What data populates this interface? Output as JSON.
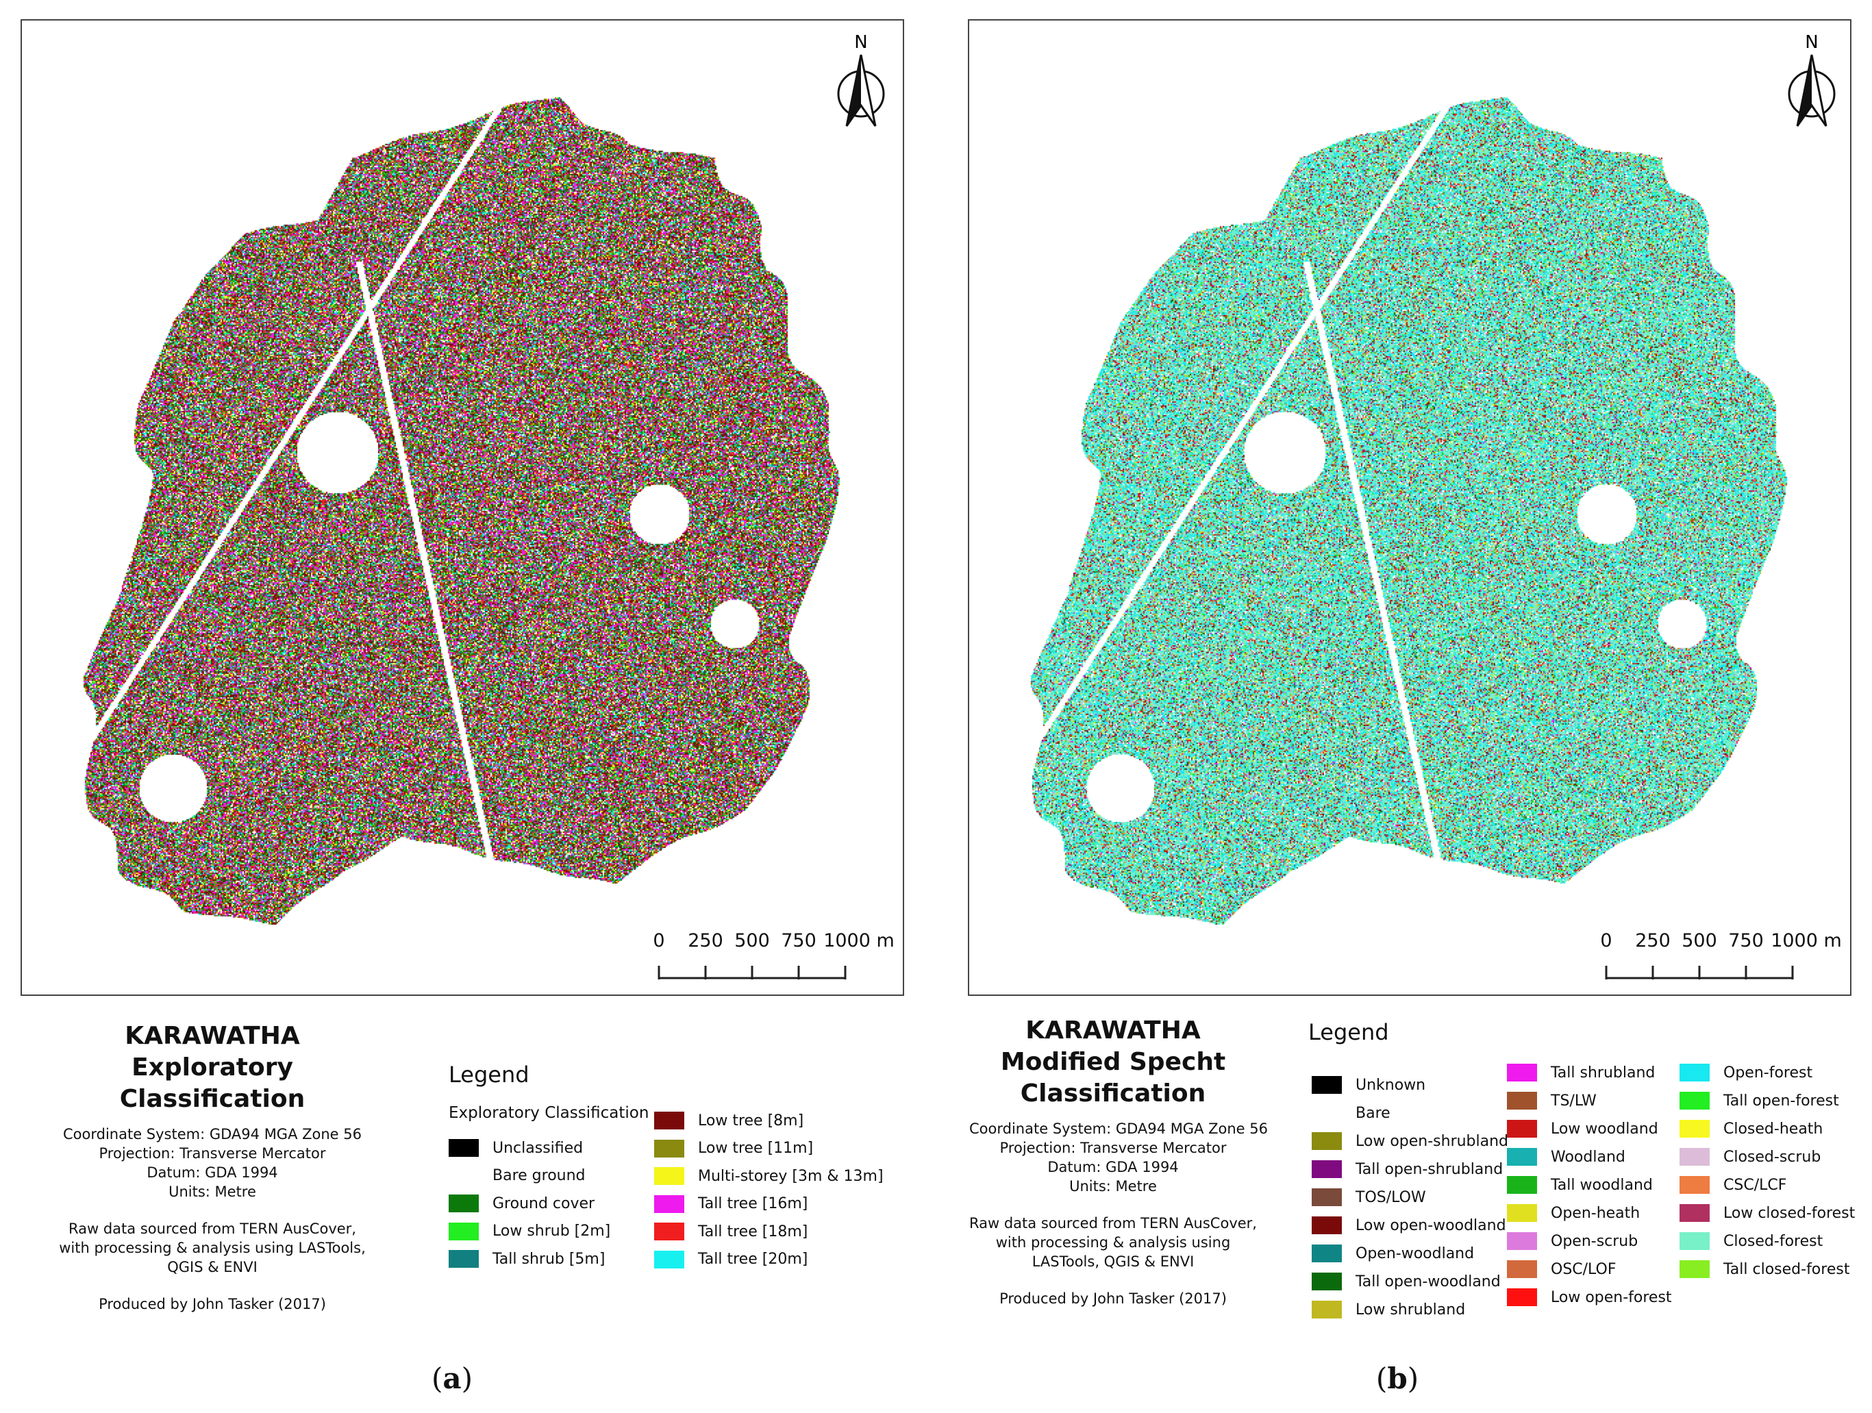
{
  "north_label": "N",
  "scalebar": {
    "ticks": [
      "0",
      "250",
      "500",
      "750",
      "1000 m"
    ]
  },
  "panel_a": {
    "caption_letter": "a",
    "title_line1": "KARAWATHA",
    "title_line2": "Exploratory Classification",
    "meta": {
      "coord": "Coordinate System: GDA94 MGA Zone 56",
      "projection": "Projection: Transverse Mercator",
      "datum": "Datum: GDA 1994",
      "units": "Units: Metre",
      "source1": "Raw data sourced from TERN AusCover,",
      "source2": "with processing & analysis using LASTools,",
      "source3": "QGIS & ENVI",
      "produced": "Produced by John Tasker (2017)"
    },
    "legend_title": "Legend",
    "legend_subtitle": "Exploratory Classification",
    "legend": [
      {
        "label": "Unclassified",
        "color": "#000000"
      },
      {
        "label": "Bare ground",
        "color": "#ffffff"
      },
      {
        "label": "Ground cover",
        "color": "#0b7a0b"
      },
      {
        "label": "Low shrub [2m]",
        "color": "#22ee22"
      },
      {
        "label": "Tall shrub [5m]",
        "color": "#128080"
      },
      {
        "label": "Low tree [8m]",
        "color": "#7a0a0a"
      },
      {
        "label": "Low tree [11m]",
        "color": "#8a8a10"
      },
      {
        "label": "Multi-storey [3m & 13m]",
        "color": "#f5f51a"
      },
      {
        "label": "Tall tree [16m]",
        "color": "#ee1aee"
      },
      {
        "label": "Tall tree [18m]",
        "color": "#f01e1e"
      },
      {
        "label": "Tall tree [20m]",
        "color": "#18f0f0"
      }
    ]
  },
  "panel_b": {
    "caption_letter": "b",
    "title_line1": "KARAWATHA",
    "title_line2": "Modified Specht",
    "title_line3": "Classification",
    "meta": {
      "coord": "Coordinate System: GDA94 MGA Zone 56",
      "projection": "Projection: Transverse Mercator",
      "datum": "Datum: GDA 1994",
      "units": "Units: Metre",
      "source1": "Raw data sourced from TERN AusCover,",
      "source2": "with processing & analysis using",
      "source3": "LASTools, QGIS & ENVI",
      "produced": "Produced by John Tasker (2017)"
    },
    "legend_title": "Legend",
    "legend": [
      {
        "label": "Unknown",
        "color": "#000000"
      },
      {
        "label": "Bare",
        "color": "#ffffff"
      },
      {
        "label": "Low open-shrubland",
        "color": "#8b8b10"
      },
      {
        "label": "Tall open-shrubland",
        "color": "#800a80"
      },
      {
        "label": "TOS/LOW",
        "color": "#7a4a3a"
      },
      {
        "label": "Low open-woodland",
        "color": "#7a0a0a"
      },
      {
        "label": "Open-woodland",
        "color": "#108585"
      },
      {
        "label": "Tall open-woodland",
        "color": "#0b6a0b"
      },
      {
        "label": "Low shrubland",
        "color": "#c0b820"
      },
      {
        "label": "Tall shrubland",
        "color": "#ee1aee"
      },
      {
        "label": "TS/LW",
        "color": "#a0522d"
      },
      {
        "label": "Low woodland",
        "color": "#cc1515"
      },
      {
        "label": "Woodland",
        "color": "#18b0b0"
      },
      {
        "label": "Tall woodland",
        "color": "#1ab41a"
      },
      {
        "label": "Open-heath",
        "color": "#e0e020"
      },
      {
        "label": "Open-scrub",
        "color": "#dd7add"
      },
      {
        "label": "OSC/LOF",
        "color": "#d2693c"
      },
      {
        "label": "Low open-forest",
        "color": "#ff1010"
      },
      {
        "label": "Open-forest",
        "color": "#18e8f0"
      },
      {
        "label": "Tall open-forest",
        "color": "#22ee22"
      },
      {
        "label": "Closed-heath",
        "color": "#f8f820"
      },
      {
        "label": "Closed-scrub",
        "color": "#dcbcd8"
      },
      {
        "label": "CSC/LCF",
        "color": "#ef7c40"
      },
      {
        "label": "Low closed-forest",
        "color": "#b03060"
      },
      {
        "label": "Closed-forest",
        "color": "#78f0c8"
      },
      {
        "label": "Tall closed-forest",
        "color": "#88ee22"
      }
    ]
  }
}
